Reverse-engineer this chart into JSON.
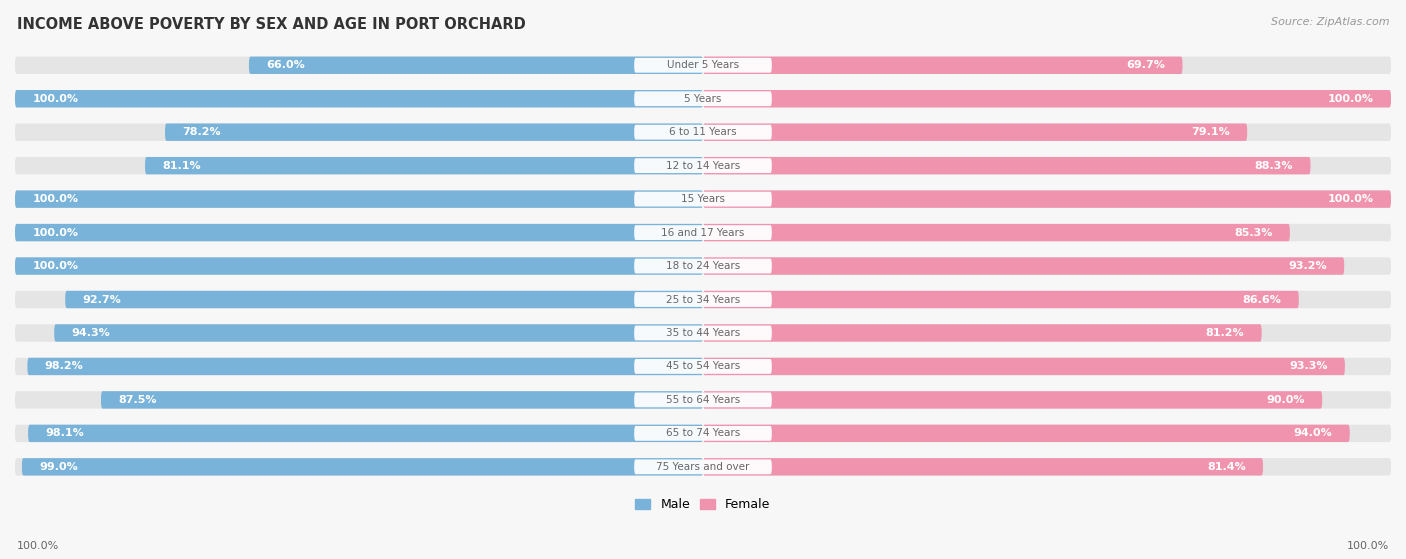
{
  "title": "INCOME ABOVE POVERTY BY SEX AND AGE IN PORT ORCHARD",
  "source": "Source: ZipAtlas.com",
  "categories": [
    "Under 5 Years",
    "5 Years",
    "6 to 11 Years",
    "12 to 14 Years",
    "15 Years",
    "16 and 17 Years",
    "18 to 24 Years",
    "25 to 34 Years",
    "35 to 44 Years",
    "45 to 54 Years",
    "55 to 64 Years",
    "65 to 74 Years",
    "75 Years and over"
  ],
  "male_values": [
    66.0,
    100.0,
    78.2,
    81.1,
    100.0,
    100.0,
    100.0,
    92.7,
    94.3,
    98.2,
    87.5,
    98.1,
    99.0
  ],
  "female_values": [
    69.7,
    100.0,
    79.1,
    88.3,
    100.0,
    85.3,
    93.2,
    86.6,
    81.2,
    93.3,
    90.0,
    94.0,
    81.4
  ],
  "male_color": "#7ab3d9",
  "female_color": "#f093ae",
  "bg_bar_color": "#e5e5e5",
  "background_color": "#f7f7f7",
  "label_color_white": "#ffffff",
  "label_color_dark": "#666666",
  "title_color": "#333333",
  "source_color": "#999999",
  "bottom_label": "100.0%",
  "legend_male": "Male",
  "legend_female": "Female"
}
